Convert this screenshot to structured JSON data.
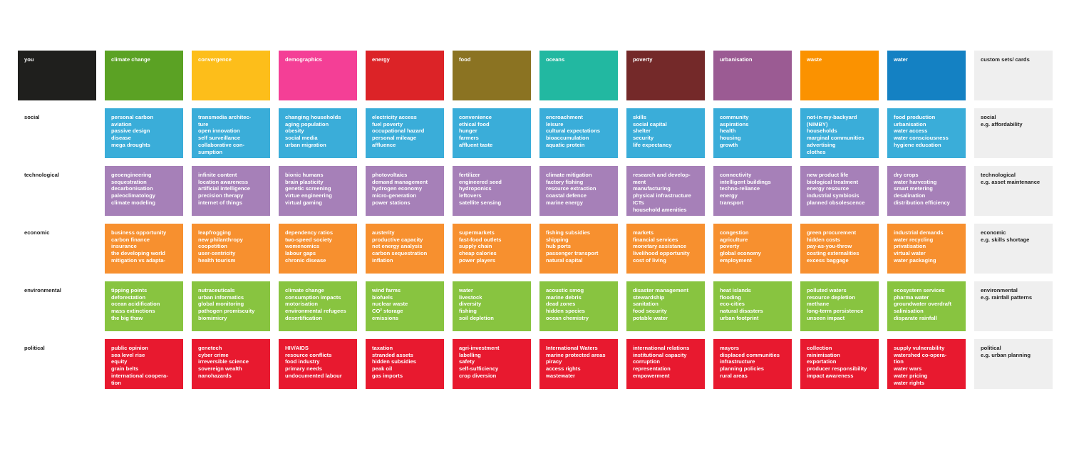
{
  "corner_label": "you",
  "custom_header": "custom sets/ cards",
  "columns": [
    {
      "name": "climate change",
      "color": "#5ba224"
    },
    {
      "name": "convergence",
      "color": "#fdbe1a"
    },
    {
      "name": "demographics",
      "color": "#f43f96"
    },
    {
      "name": "energy",
      "color": "#dc2327"
    },
    {
      "name": "food",
      "color": "#8b7322"
    },
    {
      "name": "oceans",
      "color": "#22b8a1"
    },
    {
      "name": "poverty",
      "color": "#742929"
    },
    {
      "name": "urbanisation",
      "color": "#9b5b93"
    },
    {
      "name": "waste",
      "color": "#fb9200"
    },
    {
      "name": "water",
      "color": "#1481c3"
    }
  ],
  "rows": [
    {
      "label": "social",
      "color": "#3aadd9",
      "custom": [
        "social",
        "e.g. affordability"
      ],
      "cells": [
        [
          "personal carbon",
          "aviation",
          "passive design",
          "disease",
          "mega droughts"
        ],
        [
          "transmedia architec-",
          "ture",
          "open innovation",
          "self surveillance",
          "collaborative con-",
          "sumption"
        ],
        [
          "changing households",
          "aging population",
          "obesity",
          "social media",
          "urban migration"
        ],
        [
          "electricity access",
          "fuel poverty",
          "occupational hazard",
          "personal mileage",
          "affluence"
        ],
        [
          "convenience",
          "ethical food",
          "hunger",
          "farmers",
          "affluent taste"
        ],
        [
          "encroachment",
          "leisure",
          "cultural expectations",
          "bioaccumulation",
          "aquatic protein"
        ],
        [
          "skills",
          "social capital",
          "shelter",
          "security",
          "life expectancy"
        ],
        [
          "community",
          "aspirations",
          "health",
          "housing",
          "growth"
        ],
        [
          "not-in-my-backyard",
          "(NIMBY)",
          "households",
          "marginal communities",
          "advertising",
          "clothes"
        ],
        [
          "food production",
          "urbanisation",
          "water access",
          "water consciousness",
          "hygiene education"
        ]
      ]
    },
    {
      "label": "technological",
      "color": "#a680b8",
      "custom": [
        "technological",
        "e.g. asset maintenance"
      ],
      "cells": [
        [
          "geoengineering",
          "sequestration",
          "decarbonisation",
          "paleoclimatology",
          "climate modeling"
        ],
        [
          "infinite content",
          "location awareness",
          "artificial intelligence",
          "precision therapy",
          "internet of things"
        ],
        [
          "bionic humans",
          "brain plasticity",
          "genetic screening",
          "virtue engineering",
          "virtual gaming"
        ],
        [
          "photovoltaics",
          "demand management",
          "hydrogen economy",
          "micro-generation",
          "power stations"
        ],
        [
          "fertilizer",
          "engineered seed",
          "hydroponics",
          "leftovers",
          "satellite sensing"
        ],
        [
          "climate mitigation",
          "factory fishing",
          "resource extraction",
          "coastal defence",
          "marine energy"
        ],
        [
          "research and develop-",
          "ment",
          "manufacturing",
          "physical infrastructure",
          "ICTs",
          "household amenities"
        ],
        [
          "connectivity",
          "intelligent buildings",
          "techno-reliance",
          "energy",
          "transport"
        ],
        [
          "new product life",
          "biological treatment",
          "energy resource",
          "industrial symbiosis",
          "planned obsolescence"
        ],
        [
          "dry crops",
          "water harvesting",
          "smart metering",
          "desalination",
          "distribution efficiency"
        ]
      ]
    },
    {
      "label": "economic",
      "color": "#f7902f",
      "custom": [
        "economic",
        "e.g. skills shortage"
      ],
      "cells": [
        [
          "business opportunity",
          "carbon finance",
          "insurance",
          "the developing world",
          "mitigation vs adapta-"
        ],
        [
          "leapfrogging",
          "new philanthropy",
          "coopetition",
          "user-centricity",
          "health tourism"
        ],
        [
          "dependency ratios",
          "two-speed society",
          "womenomics",
          "labour gaps",
          "chronic disease"
        ],
        [
          "austerity",
          "productive capacity",
          "net energy analysis",
          "carbon sequestration",
          "inflation"
        ],
        [
          "supermarkets",
          "fast-food outlets",
          "supply chain",
          "cheap calories",
          "power players"
        ],
        [
          "fishing subsidies",
          "shipping",
          "hub ports",
          "passenger transport",
          "natural capital"
        ],
        [
          "markets",
          "financial services",
          "monetary assistance",
          "livelihood opportunity",
          "cost of living"
        ],
        [
          "congestion",
          "agriculture",
          "poverty",
          "global economy",
          "employment"
        ],
        [
          "green procurement",
          "hidden costs",
          "pay-as-you-throw",
          "costing externalities",
          "excess baggage"
        ],
        [
          "industrial demands",
          "water recycling",
          "privatisation",
          "virtual water",
          "water packaging"
        ]
      ]
    },
    {
      "label": "environmental",
      "color": "#88c440",
      "custom": [
        "environmental",
        "e.g. rainfall patterns"
      ],
      "cells": [
        [
          "tipping points",
          "deforestation",
          "ocean acidification",
          "mass extinctions",
          "the big thaw"
        ],
        [
          "nutraceuticals",
          "urban informatics",
          "global monitoring",
          "pathogen promiscuity",
          "biomimicry"
        ],
        [
          "climate change",
          "consumption impacts",
          "motorisation",
          "environmental refugees",
          "desertification"
        ],
        [
          "wind farms",
          "biofuels",
          "nuclear waste",
          "CO² storage",
          "emissions"
        ],
        [
          "water",
          "livestock",
          "diversity",
          "fishing",
          "soil depletion"
        ],
        [
          "acoustic smog",
          "marine debris",
          "dead zones",
          "hidden species",
          "ocean chemistry"
        ],
        [
          "disaster management",
          "stewardship",
          "sanitation",
          "food security",
          "potable water"
        ],
        [
          "heat islands",
          "flooding",
          "eco-cities",
          "natural disasters",
          "urban footprint"
        ],
        [
          "polluted waters",
          "resource depletion",
          "methane",
          "long-term persistence",
          "unseen impact"
        ],
        [
          "ecosystem services",
          "pharma water",
          "groundwater overdraft",
          "salinisation",
          "disparate rainfall"
        ]
      ]
    },
    {
      "label": "political",
      "color": "#e8192f",
      "custom": [
        "political",
        "e.g. urban planning"
      ],
      "cells": [
        [
          "public opinion",
          "sea level rise",
          "equity",
          "grain belts",
          "international coopera-",
          "tion"
        ],
        [
          "genetech",
          "cyber crime",
          "irreversible science",
          "sovereign wealth",
          "nanohazards"
        ],
        [
          "HIV/AIDS",
          "resource conflicts",
          "food industry",
          "primary needs",
          "undocumented labour"
        ],
        [
          "taxation",
          "stranded assets",
          "hidden subsidies",
          "peak oil",
          "gas imports"
        ],
        [
          "agri-investment",
          "labelling",
          "safety",
          "self-sufficiency",
          "crop diversion"
        ],
        [
          "International Waters",
          "marine protected areas",
          "piracy",
          "access rights",
          "wastewater"
        ],
        [
          "international relations",
          "institutional capacity",
          "corruption",
          "representation",
          "empowerment"
        ],
        [
          "mayors",
          "displaced communities",
          "infrastructure",
          "planning policies",
          "rural areas"
        ],
        [
          "collection",
          "minimisation",
          "exportation",
          "producer responsibility",
          "impact awareness"
        ],
        [
          "supply vulnerability",
          "watershed co-opera-",
          "tion",
          "water wars",
          "water pricing",
          "water rights"
        ]
      ]
    }
  ]
}
